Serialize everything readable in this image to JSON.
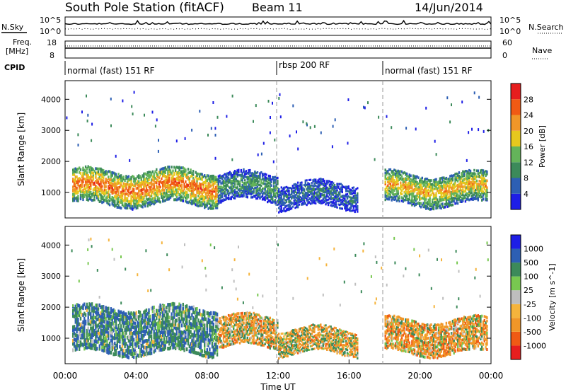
{
  "header": {
    "title": "South Pole Station (fitACF)",
    "beam": "Beam 11",
    "date": "14/Jun/2014"
  },
  "noise_panel": {
    "left_label": "N.Sky",
    "right_label": "N.Search",
    "tick_top": "10^5",
    "tick_bottom": "10^0"
  },
  "freq_panel": {
    "left_label_1": "Freq.",
    "left_label_2": "[MHz]",
    "tick_top": "18",
    "tick_bottom": "8",
    "right_label": "Nave",
    "right_tick_top": "60",
    "right_tick_bottom": "0"
  },
  "cpid": {
    "label": "CPID",
    "segments": [
      {
        "text": "normal (fast) 151 RF",
        "start_hour": 0
      },
      {
        "text": "rbsp 200 RF",
        "start_hour": 12
      },
      {
        "text": "normal (fast) 151 RF",
        "start_hour": 18
      }
    ]
  },
  "colors": {
    "power_scale": [
      "#1e1ee6",
      "#2d5fb4",
      "#3c8a5a",
      "#64b45a",
      "#e6c81e",
      "#f09628",
      "#f05a14",
      "#e61e1e"
    ],
    "velocity_scale": [
      "#e61e1e",
      "#f05a14",
      "#f09628",
      "#f5b43c",
      "#bebebe",
      "#78c850",
      "#3c8a5a",
      "#2d5fb4",
      "#1e1ee6"
    ]
  },
  "chart_data": [
    {
      "type": "heatmap",
      "title": "Power",
      "ylabel": "Slant Range [km]",
      "xlabel": "",
      "xlim": [
        0,
        24
      ],
      "ylim": [
        180,
        4600
      ],
      "yticks": [
        "1000",
        "2000",
        "3000",
        "4000"
      ],
      "xticks": [
        "00:00",
        "04:00",
        "08:00",
        "12:00",
        "16:00",
        "20:00",
        "00:00"
      ],
      "colorbar_label": "Power [dB]",
      "colorbar_ticks": [
        "4",
        "8",
        "12",
        "16",
        "20",
        "24",
        "28"
      ],
      "colorbar_range": [
        0,
        32
      ],
      "echo_bands": [
        {
          "start_hour": 0.4,
          "end_hour": 8.6,
          "range_low_km": 600,
          "range_high_km": 1700,
          "power_db": 26
        },
        {
          "start_hour": 8.6,
          "end_hour": 12.0,
          "range_low_km": 700,
          "range_high_km": 1600,
          "power_db": 12
        },
        {
          "start_hour": 12.0,
          "end_hour": 16.5,
          "range_low_km": 500,
          "range_high_km": 1300,
          "power_db": 8
        },
        {
          "start_hour": 18.0,
          "end_hour": 23.8,
          "range_low_km": 600,
          "range_high_km": 1600,
          "power_db": 22
        }
      ]
    },
    {
      "type": "heatmap",
      "title": "Velocity",
      "ylabel": "Slant Range [km]",
      "xlabel": "Time UT",
      "xlim": [
        0,
        24
      ],
      "ylim": [
        180,
        4600
      ],
      "yticks": [
        "1000",
        "2000",
        "3000",
        "4000"
      ],
      "xticks": [
        "00:00",
        "04:00",
        "08:00",
        "12:00",
        "16:00",
        "20:00",
        "00:00"
      ],
      "colorbar_label": "Velocity [m s^-1]",
      "colorbar_ticks": [
        "1000",
        "500",
        "100",
        "25",
        "-25",
        "-100",
        "-500",
        "-1000"
      ],
      "colorbar_range": [
        -1000,
        1000
      ],
      "echo_bands": [
        {
          "start_hour": 0.4,
          "end_hour": 8.6,
          "range_low_km": 500,
          "range_high_km": 2000,
          "velocity": 400
        },
        {
          "start_hour": 8.6,
          "end_hour": 12.0,
          "range_low_km": 700,
          "range_high_km": 1700,
          "velocity": -150
        },
        {
          "start_hour": 12.0,
          "end_hour": 16.5,
          "range_low_km": 500,
          "range_high_km": 1300,
          "velocity": -100
        },
        {
          "start_hour": 18.0,
          "end_hour": 23.8,
          "range_low_km": 500,
          "range_high_km": 1600,
          "velocity": -200
        }
      ]
    }
  ]
}
